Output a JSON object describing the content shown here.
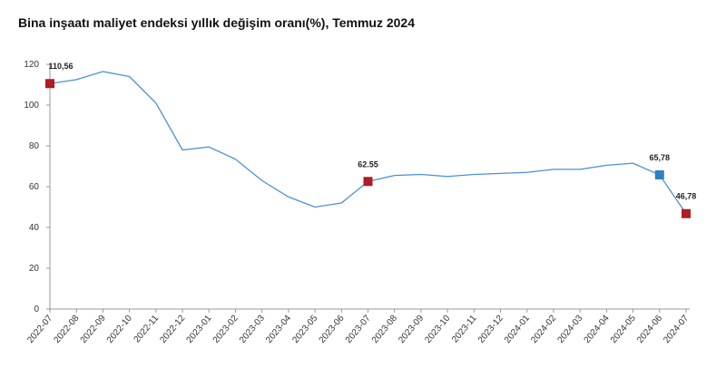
{
  "chart_data": {
    "type": "line",
    "title": "Bina inşaatı maliyet endeksi yıllık değişim oranı(%), Temmuz 2024",
    "categories": [
      "2022-07",
      "2022-08",
      "2022-09",
      "2022-10",
      "2022-11",
      "2022-12",
      "2023-01",
      "2023-02",
      "2023-03",
      "2023-04",
      "2023-05",
      "2023-06",
      "2023-07",
      "2023-08",
      "2023-09",
      "2023-10",
      "2023-11",
      "2023-12",
      "2024-01",
      "2024-02",
      "2024-03",
      "2024-04",
      "2024-05",
      "2024-06",
      "2024-07"
    ],
    "series": [
      {
        "color": "#4a90d9",
        "values": [
          110.56,
          112.5,
          116.5,
          114,
          101,
          78,
          79.5,
          73.5,
          63,
          55,
          50,
          52,
          62.55,
          65.5,
          66,
          65,
          66,
          66.5,
          67,
          68.5,
          68.5,
          70.5,
          71.5,
          65.78,
          46.78
        ],
        "value_labels": [
          "110,56",
          null,
          null,
          null,
          null,
          null,
          null,
          null,
          null,
          null,
          null,
          null,
          "62.55",
          null,
          null,
          null,
          null,
          null,
          null,
          null,
          null,
          null,
          null,
          "65,78",
          "46,78"
        ],
        "marker_colors": [
          "#b01c24",
          null,
          null,
          null,
          null,
          null,
          null,
          null,
          null,
          null,
          null,
          null,
          "#b01c24",
          null,
          null,
          null,
          null,
          null,
          null,
          null,
          null,
          null,
          null,
          "#2f7fc1",
          "#b01c24"
        ]
      }
    ],
    "ylim": [
      0,
      120
    ],
    "yticks": [
      0,
      20,
      40,
      60,
      80,
      100,
      120
    ],
    "grid": false
  }
}
